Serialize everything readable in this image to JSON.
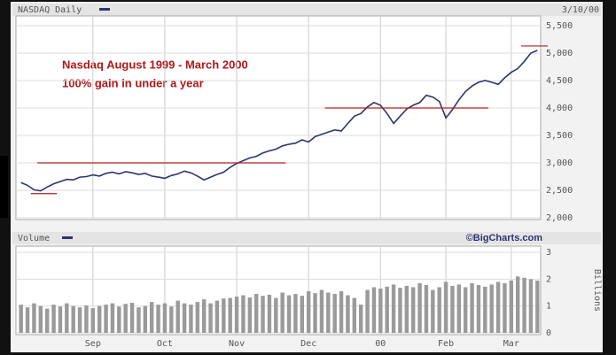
{
  "chart_data": [
    {
      "type": "line",
      "title": "NASDAQ Daily",
      "date_label": "3/10/00",
      "annotations": [
        "Nasdaq August 1999 -  March 2000",
        "100% gain in under a year"
      ],
      "color": "#2e3470",
      "values": [
        2640,
        2590,
        2510,
        2490,
        2560,
        2620,
        2660,
        2700,
        2690,
        2740,
        2750,
        2780,
        2760,
        2810,
        2830,
        2800,
        2840,
        2820,
        2790,
        2810,
        2760,
        2740,
        2720,
        2770,
        2800,
        2850,
        2820,
        2760,
        2690,
        2740,
        2790,
        2830,
        2920,
        2990,
        3040,
        3090,
        3120,
        3180,
        3220,
        3250,
        3310,
        3340,
        3360,
        3420,
        3380,
        3480,
        3520,
        3560,
        3600,
        3580,
        3720,
        3850,
        3900,
        4020,
        4100,
        4050,
        3900,
        3720,
        3850,
        3980,
        4050,
        4100,
        4230,
        4200,
        4120,
        3820,
        3970,
        4150,
        4300,
        4400,
        4470,
        4500,
        4470,
        4430,
        4550,
        4650,
        4720,
        4850,
        5000,
        5050
      ],
      "ylim": [
        2000,
        5500
      ],
      "yticks": [
        {
          "value": 2000,
          "label": "2,000"
        },
        {
          "value": 2500,
          "label": "2,500"
        },
        {
          "value": 3000,
          "label": "3,000"
        },
        {
          "value": 3500,
          "label": "3,500"
        },
        {
          "value": 4000,
          "label": "4,000"
        },
        {
          "value": 4500,
          "label": "4,500"
        },
        {
          "value": 5000,
          "label": "5,000"
        },
        {
          "value": 5500,
          "label": "5,500"
        }
      ],
      "grid": true,
      "reference_lines": [
        {
          "value": 2440,
          "from": 2,
          "to": 5
        },
        {
          "value": 3000,
          "from": 3,
          "to": 40
        },
        {
          "value": 4000,
          "from": 47,
          "to": 71
        },
        {
          "value": 5130,
          "from": 77,
          "to": 79
        }
      ],
      "reference_color": "#b02020"
    },
    {
      "type": "bar",
      "title": "Volume",
      "source": "©BigCharts.com",
      "y_label": "Billions",
      "color": "#9a9a9a",
      "categories": [
        null,
        null,
        null,
        null,
        null,
        null,
        null,
        null,
        null,
        null,
        null,
        "Sep",
        null,
        null,
        null,
        null,
        null,
        null,
        null,
        null,
        null,
        null,
        "Oct",
        null,
        null,
        null,
        null,
        null,
        null,
        null,
        null,
        null,
        null,
        "Nov",
        null,
        null,
        null,
        null,
        null,
        null,
        null,
        null,
        null,
        null,
        "Dec",
        null,
        null,
        null,
        null,
        null,
        null,
        null,
        null,
        null,
        null,
        "00",
        null,
        null,
        null,
        null,
        null,
        null,
        null,
        null,
        null,
        "Feb",
        null,
        null,
        null,
        null,
        null,
        null,
        null,
        null,
        null,
        "Mar",
        null,
        null,
        null,
        null
      ],
      "values": [
        1.05,
        0.95,
        1.1,
        1.0,
        0.9,
        1.05,
        0.98,
        1.1,
        1.0,
        0.95,
        1.02,
        0.92,
        1.0,
        1.05,
        1.1,
        0.98,
        1.08,
        1.12,
        0.95,
        1.0,
        1.15,
        1.05,
        1.1,
        0.98,
        1.2,
        1.1,
        1.05,
        1.15,
        1.25,
        1.1,
        1.2,
        1.28,
        1.3,
        1.35,
        1.4,
        1.32,
        1.45,
        1.38,
        1.42,
        1.3,
        1.5,
        1.4,
        1.45,
        1.38,
        1.55,
        1.48,
        1.6,
        1.5,
        1.45,
        1.55,
        1.4,
        1.3,
        1.05,
        1.6,
        1.7,
        1.65,
        1.72,
        1.8,
        1.68,
        1.75,
        1.7,
        1.85,
        1.78,
        1.6,
        1.7,
        1.9,
        1.75,
        1.8,
        1.7,
        1.85,
        1.78,
        1.72,
        1.8,
        1.9,
        1.85,
        1.95,
        2.1,
        2.05,
        2.0,
        1.95
      ],
      "ylim": [
        0,
        3
      ],
      "yticks": [
        0,
        1,
        2,
        3
      ],
      "grid": true
    }
  ]
}
